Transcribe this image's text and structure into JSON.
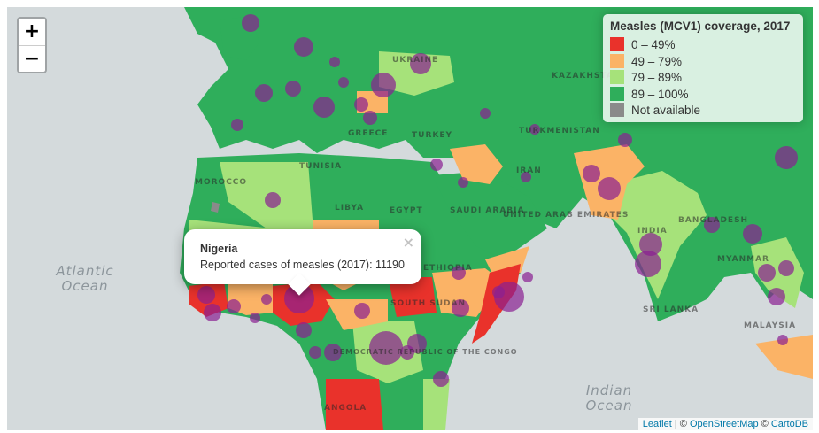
{
  "colors": {
    "c0_49": "#e9322b",
    "c49_79": "#fbb366",
    "c79_89": "#a6e27a",
    "c89_100": "#2fae5b",
    "na": "#8a8a8a",
    "bubble": "#8a1f92",
    "ocean": "#d4dadc"
  },
  "zoom": {
    "in_label": "+",
    "out_label": "−"
  },
  "legend": {
    "title": "Measles (MCV1) coverage, 2017",
    "items": [
      {
        "label": "0 – 49%",
        "color": "#e9322b"
      },
      {
        "label": "49 – 79%",
        "color": "#fbb366"
      },
      {
        "label": "79 – 89%",
        "color": "#a6e27a"
      },
      {
        "label": "89 – 100%",
        "color": "#2fae5b"
      },
      {
        "label": "Not available",
        "color": "#8a8a8a"
      }
    ]
  },
  "popup": {
    "country": "Nigeria",
    "text": "Reported cases of measles (2017): 11190",
    "close": "×"
  },
  "oceans": {
    "atlantic": "Atlantic Ocean",
    "indian": "Indian Ocean"
  },
  "country_labels": [
    "UKRAINE",
    "KAZAKHSTAN",
    "TURKEY",
    "TURKMENISTAN",
    "IRAN",
    "LIBYA",
    "EGYPT",
    "SAUDI ARABIA",
    "UNITED ARAB EMIRATES",
    "ETHIOPIA",
    "SOUTH SUDAN",
    "INDIA",
    "MYANMAR",
    "SRI LANKA",
    "TUNISIA",
    "MOROCCO",
    "GREECE",
    "ANGOLA",
    "DEMOCRATIC REPUBLIC OF THE CONGO",
    "BANGLADESH",
    "MALAYSIA"
  ],
  "attribution": {
    "leaflet": "Leaflet",
    "osm": "OpenStreetMap",
    "carto": "CartoDB",
    "sep": " | © ",
    "sep2": " © "
  }
}
